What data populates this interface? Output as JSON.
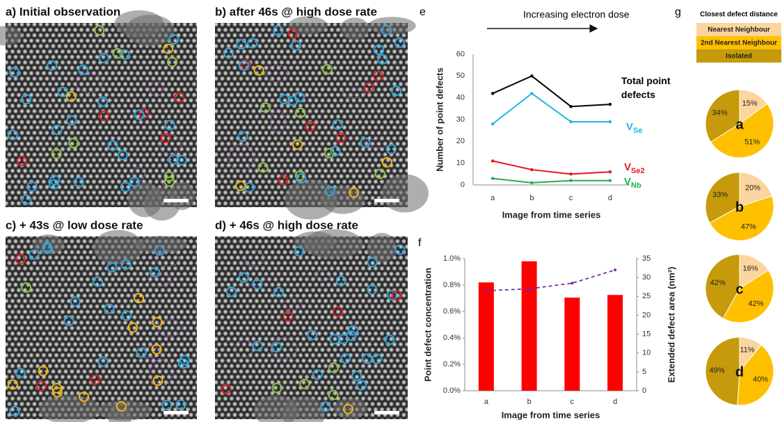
{
  "panels": [
    {
      "title": "a) Initial observation"
    },
    {
      "title": "b) after 46s @ high dose rate"
    },
    {
      "title": "c) + 43s @ low dose rate"
    },
    {
      "title": "d) + 46s @ high dose rate"
    }
  ],
  "chart_data": [
    {
      "type": "line",
      "panel_label": "e",
      "annotation": "Increasing electron dose",
      "xlabel": "Image from time series",
      "ylabel": "Number of point defects",
      "categories": [
        "a",
        "b",
        "c",
        "d"
      ],
      "ylim": [
        0,
        60
      ],
      "yticks": [
        0,
        10,
        20,
        30,
        40,
        50,
        60
      ],
      "grid": false,
      "series": [
        {
          "name": "Total point defects",
          "color": "#000000",
          "values": [
            42,
            50,
            36,
            37
          ]
        },
        {
          "name": "V",
          "subscript": "Se",
          "color": "#1fb4e6",
          "values": [
            28,
            42,
            29,
            29
          ]
        },
        {
          "name": "V",
          "subscript": "Se2",
          "color": "#e8141b",
          "values": [
            11,
            7,
            5,
            6
          ]
        },
        {
          "name": "V",
          "subscript": "Nb",
          "color": "#1fae4c",
          "values": [
            3,
            1,
            2,
            2
          ]
        }
      ]
    },
    {
      "type": "bar",
      "panel_label": "f",
      "xlabel": "Image from time series",
      "ylabel": "Point defect concentration",
      "y2label": "Extended defect area (nm²)",
      "categories": [
        "a",
        "b",
        "c",
        "d"
      ],
      "ylim": [
        0,
        1.0
      ],
      "yticks": [
        {
          "value": 0,
          "label": "0.0%"
        },
        {
          "value": 0.2,
          "label": "0.2%"
        },
        {
          "value": 0.4,
          "label": "0.4%"
        },
        {
          "value": 0.6,
          "label": "0.6%"
        },
        {
          "value": 0.8,
          "label": "0.8%"
        },
        {
          "value": 1.0,
          "label": "1.0%"
        }
      ],
      "y2lim": [
        0,
        35
      ],
      "y2ticks": [
        0,
        5,
        10,
        15,
        20,
        25,
        30,
        35
      ],
      "grid": false,
      "series": [
        {
          "color": "#ff0000",
          "values": [
            0.82,
            0.98,
            0.705,
            0.725
          ]
        },
        {
          "type": "line",
          "axis": "y2",
          "color": "#7030a0",
          "dashed": true,
          "values": [
            26.5,
            27,
            28.5,
            32
          ]
        }
      ]
    },
    {
      "type": "pie",
      "panel_label": "g",
      "title": "Closest defect distance",
      "categories": [
        "Nearest Neighbour",
        "2nd Nearest Neighbour",
        "Isolated"
      ],
      "colors": [
        "#fbd59d",
        "#ffc000",
        "#c69a0a"
      ],
      "series": [
        {
          "name": "a",
          "values": [
            15,
            51,
            34
          ],
          "value_labels": [
            "15%",
            "51%",
            "34%"
          ]
        },
        {
          "name": "b",
          "values": [
            20,
            47,
            33
          ],
          "value_labels": [
            "20%",
            "47%",
            "33%"
          ]
        },
        {
          "name": "c",
          "values": [
            16,
            42,
            42
          ],
          "value_labels": [
            "16%",
            "42%",
            "42%"
          ]
        },
        {
          "name": "d",
          "values": [
            11,
            40,
            49
          ],
          "value_labels": [
            "11%",
            "40%",
            "49%"
          ]
        }
      ]
    }
  ]
}
